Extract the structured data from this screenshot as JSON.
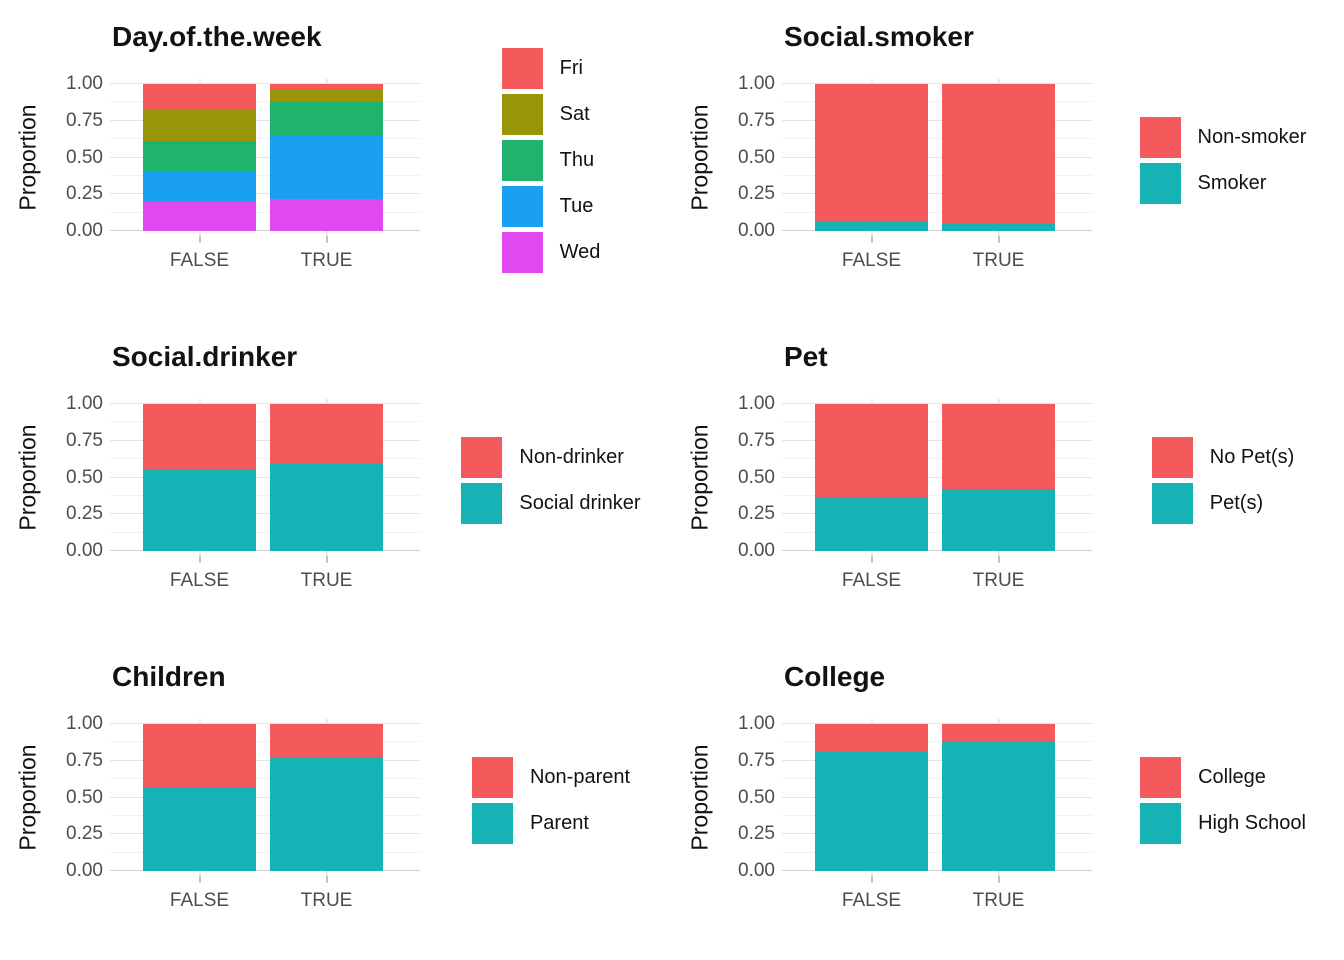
{
  "figure": {
    "background": "#ffffff",
    "text_color": "#121212",
    "tick_color": "#4d4d4d",
    "gridline_major_color": "#e4e4e4",
    "gridline_minor_color": "#f2f2f2",
    "axis_line_color": "#d2d2d2"
  },
  "axis": {
    "ylabel": "Proportion",
    "yticks": [
      "1.00",
      "0.75",
      "0.50",
      "0.25",
      "0.00"
    ],
    "ytick_values": [
      1,
      0.75,
      0.5,
      0.25,
      0
    ],
    "minor_tick_values": [
      0.125,
      0.375,
      0.625,
      0.875
    ],
    "categories": [
      "FALSE",
      "TRUE"
    ],
    "ylim": [
      0,
      1
    ],
    "grid": "on",
    "legend_position": "right"
  },
  "chart_data": [
    {
      "type": "bar",
      "subtype": "stacked-proportion",
      "title": "Day.of.the.week",
      "ylabel": "Proportion",
      "categories": [
        "FALSE",
        "TRUE"
      ],
      "ylim": [
        0,
        1
      ],
      "series": [
        {
          "name": "Fri",
          "color": "#f4595b",
          "values": [
            0.18,
            0.04
          ]
        },
        {
          "name": "Sat",
          "color": "#9a9408",
          "values": [
            0.21,
            0.08
          ]
        },
        {
          "name": "Thu",
          "color": "#1eb46e",
          "values": [
            0.21,
            0.23
          ]
        },
        {
          "name": "Tue",
          "color": "#19a0f1",
          "values": [
            0.2,
            0.43
          ]
        },
        {
          "name": "Wed",
          "color": "#e049f1",
          "values": [
            0.2,
            0.22
          ]
        }
      ]
    },
    {
      "type": "bar",
      "subtype": "stacked-proportion",
      "title": "Social.smoker",
      "ylabel": "Proportion",
      "categories": [
        "FALSE",
        "TRUE"
      ],
      "ylim": [
        0,
        1
      ],
      "series": [
        {
          "name": "Non-smoker",
          "color": "#f4595b",
          "values": [
            0.93,
            0.95
          ]
        },
        {
          "name": "Smoker",
          "color": "#16b2b5",
          "values": [
            0.07,
            0.05
          ]
        }
      ]
    },
    {
      "type": "bar",
      "subtype": "stacked-proportion",
      "title": "Social.drinker",
      "ylabel": "Proportion",
      "categories": [
        "FALSE",
        "TRUE"
      ],
      "ylim": [
        0,
        1
      ],
      "series": [
        {
          "name": "Non-drinker",
          "color": "#f4595b",
          "values": [
            0.44,
            0.4
          ]
        },
        {
          "name": "Social drinker",
          "color": "#16b2b5",
          "values": [
            0.56,
            0.6
          ]
        }
      ]
    },
    {
      "type": "bar",
      "subtype": "stacked-proportion",
      "title": "Pet",
      "ylabel": "Proportion",
      "categories": [
        "FALSE",
        "TRUE"
      ],
      "ylim": [
        0,
        1
      ],
      "series": [
        {
          "name": "No Pet(s)",
          "color": "#f4595b",
          "values": [
            0.63,
            0.58
          ]
        },
        {
          "name": "Pet(s)",
          "color": "#16b2b5",
          "values": [
            0.37,
            0.42
          ]
        }
      ]
    },
    {
      "type": "bar",
      "subtype": "stacked-proportion",
      "title": "Children",
      "ylabel": "Proportion",
      "categories": [
        "FALSE",
        "TRUE"
      ],
      "ylim": [
        0,
        1
      ],
      "series": [
        {
          "name": "Non-parent",
          "color": "#f4595b",
          "values": [
            0.43,
            0.23
          ]
        },
        {
          "name": "Parent",
          "color": "#16b2b5",
          "values": [
            0.57,
            0.77
          ]
        }
      ]
    },
    {
      "type": "bar",
      "subtype": "stacked-proportion",
      "title": "College",
      "ylabel": "Proportion",
      "categories": [
        "FALSE",
        "TRUE"
      ],
      "ylim": [
        0,
        1
      ],
      "series": [
        {
          "name": "College",
          "color": "#f4595b",
          "values": [
            0.19,
            0.12
          ]
        },
        {
          "name": "High School",
          "color": "#16b2b5",
          "values": [
            0.81,
            0.88
          ]
        }
      ]
    }
  ]
}
